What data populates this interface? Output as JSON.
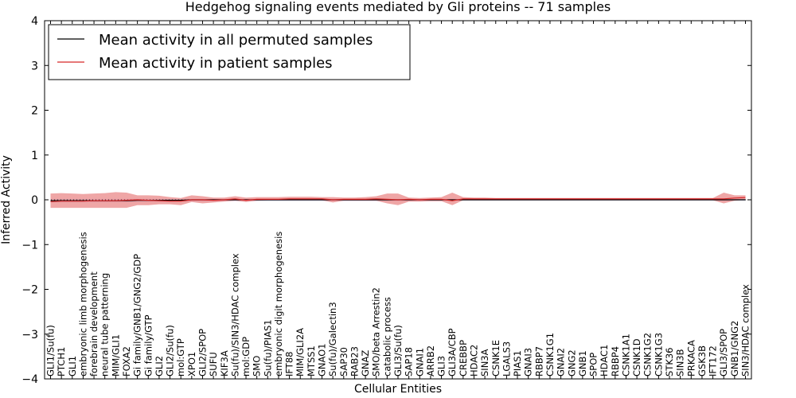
{
  "chart_data": {
    "type": "line",
    "title": "Hedgehog signaling events mediated by Gli proteins -- 71 samples",
    "xlabel": "Cellular Entities",
    "ylabel": "Inferred Activity",
    "ylim": [
      -4,
      4
    ],
    "yticks": [
      "−4",
      "−3",
      "−2",
      "−1",
      "0",
      "1",
      "2",
      "3",
      "4"
    ],
    "ytick_values": [
      -4,
      -3,
      -2,
      -1,
      0,
      1,
      2,
      3,
      4
    ],
    "legend_position": "upper-left",
    "categories": [
      "GLI1/Su(fu)",
      "PTCH1",
      "GLI1",
      "embryonic limb morphogenesis",
      "forebrain development",
      "neural tube patterning",
      "MIM/GLI1",
      "FOXA2",
      "Gi family/GNB1/GNG2/GDP",
      "Gi family/GTP",
      "GLI2",
      "GLI2/Su(fu)",
      "mol:GTP",
      "XPO1",
      "GLI2/SPOP",
      "SUFU",
      "KIF3A",
      "Su(fu)/SIN3/HDAC complex",
      "mol:GDP",
      "SMO",
      "Su(fu)/PIAS1",
      "embryonic digit morphogenesis",
      "IFT88",
      "MIM/GLI2A",
      "MTSS1",
      "GNAO1",
      "Su(fu)/Galectin3",
      "SAP30",
      "RAB23",
      "GNAZ",
      "SMO/beta Arrestin2",
      "catabolic process",
      "GLI3/Su(fu)",
      "SAP18",
      "GNAI1",
      "ARRB2",
      "GLI3",
      "GLI3A/CBP",
      "CREBBP",
      "HDAC2",
      "SIN3A",
      "CSNK1E",
      "LGALS3",
      "PIAS1",
      "GNAI3",
      "RBBP7",
      "CSNK1G1",
      "GNAI2",
      "GNG2",
      "GNB1",
      "SPOP",
      "HDAC1",
      "RBBP4",
      "CSNK1A1",
      "CSNK1D",
      "CSNK1G2",
      "CSNK1G3",
      "STK36",
      "SIN3B",
      "PRKACA",
      "GSK3B",
      "IFT172",
      "GLI3/SPOP",
      "GNB1/GNG2",
      "SIN3/HDAC complex"
    ],
    "series": [
      {
        "name": "Mean activity in all permuted samples",
        "color": "#000000",
        "values": [
          -0.02,
          -0.02,
          -0.02,
          -0.02,
          -0.02,
          -0.02,
          -0.02,
          -0.02,
          -0.01,
          -0.01,
          -0.01,
          -0.01,
          -0.01,
          0.0,
          0.0,
          0.0,
          0.0,
          0.0,
          0.0,
          0.0,
          0.0,
          0.0,
          0.0,
          0.0,
          0.0,
          0.0,
          0.0,
          0.0,
          0.0,
          0.0,
          0.0,
          0.0,
          0.0,
          0.0,
          0.0,
          0.0,
          0.0,
          0.0,
          0.0,
          0.0,
          0.0,
          0.0,
          0.0,
          0.0,
          0.0,
          0.0,
          0.0,
          0.0,
          0.0,
          0.0,
          0.0,
          0.0,
          0.0,
          0.0,
          0.0,
          0.0,
          0.0,
          0.0,
          0.0,
          0.0,
          0.0,
          0.0,
          0.0,
          0.0,
          0.0
        ],
        "band_low": [
          -0.06,
          -0.06,
          -0.06,
          -0.06,
          -0.06,
          -0.06,
          -0.06,
          -0.06,
          -0.05,
          -0.05,
          -0.05,
          -0.05,
          -0.04,
          -0.04,
          -0.04,
          -0.04,
          -0.03,
          -0.03,
          -0.03,
          -0.03,
          -0.03,
          -0.03,
          -0.03,
          -0.03,
          -0.03,
          -0.03,
          -0.03,
          -0.03,
          -0.03,
          -0.03,
          -0.03,
          -0.03,
          -0.03,
          -0.03,
          -0.03,
          -0.03,
          -0.03,
          -0.02,
          -0.02,
          -0.02,
          -0.02,
          -0.02,
          -0.02,
          -0.02,
          -0.02,
          -0.02,
          -0.02,
          -0.02,
          -0.02,
          -0.02,
          -0.02,
          -0.02,
          -0.02,
          -0.02,
          -0.02,
          -0.02,
          -0.02,
          -0.02,
          -0.02,
          -0.02,
          -0.02,
          -0.02,
          -0.03,
          -0.02,
          -0.02
        ],
        "band_high": [
          0.02,
          0.02,
          0.02,
          0.02,
          0.02,
          0.02,
          0.02,
          0.02,
          0.02,
          0.02,
          0.02,
          0.02,
          0.02,
          0.02,
          0.02,
          0.02,
          0.02,
          0.02,
          0.02,
          0.02,
          0.02,
          0.02,
          0.02,
          0.02,
          0.02,
          0.02,
          0.02,
          0.02,
          0.02,
          0.02,
          0.02,
          0.02,
          0.02,
          0.02,
          0.02,
          0.02,
          0.02,
          0.02,
          0.02,
          0.02,
          0.02,
          0.02,
          0.02,
          0.02,
          0.02,
          0.02,
          0.02,
          0.02,
          0.02,
          0.02,
          0.02,
          0.02,
          0.02,
          0.02,
          0.02,
          0.02,
          0.02,
          0.02,
          0.02,
          0.02,
          0.02,
          0.02,
          0.02,
          0.02,
          0.02
        ],
        "band_color": "#b8b8e8"
      },
      {
        "name": "Mean activity in patient samples",
        "color": "#d62728",
        "values": [
          -0.04,
          -0.03,
          -0.03,
          -0.03,
          -0.02,
          -0.02,
          -0.02,
          -0.01,
          0.0,
          -0.01,
          -0.02,
          -0.03,
          -0.03,
          0.0,
          0.0,
          -0.01,
          0.0,
          0.02,
          -0.01,
          0.01,
          0.01,
          0.01,
          0.02,
          0.02,
          0.02,
          0.02,
          0.0,
          0.01,
          0.01,
          0.01,
          0.02,
          0.01,
          0.0,
          0.01,
          0.0,
          0.01,
          0.01,
          -0.02,
          0.02,
          0.02,
          0.02,
          0.02,
          0.02,
          0.02,
          0.02,
          0.02,
          0.02,
          0.02,
          0.02,
          0.02,
          0.02,
          0.02,
          0.02,
          0.02,
          0.02,
          0.02,
          0.02,
          0.02,
          0.02,
          0.02,
          0.02,
          0.02,
          0.02,
          0.04,
          0.05
        ],
        "band_low": [
          -0.18,
          -0.18,
          -0.18,
          -0.18,
          -0.18,
          -0.18,
          -0.18,
          -0.18,
          -0.12,
          -0.12,
          -0.1,
          -0.1,
          -0.12,
          -0.05,
          -0.08,
          -0.06,
          -0.04,
          -0.02,
          -0.05,
          -0.02,
          -0.01,
          -0.01,
          -0.01,
          -0.01,
          -0.01,
          -0.01,
          -0.06,
          -0.02,
          -0.02,
          -0.02,
          -0.02,
          -0.08,
          -0.12,
          -0.04,
          -0.04,
          -0.03,
          -0.03,
          -0.12,
          -0.01,
          -0.01,
          -0.01,
          -0.01,
          -0.01,
          -0.01,
          -0.01,
          -0.01,
          -0.01,
          -0.01,
          -0.01,
          -0.01,
          -0.01,
          -0.01,
          -0.01,
          -0.01,
          -0.01,
          -0.01,
          -0.01,
          -0.01,
          -0.01,
          -0.01,
          -0.01,
          -0.01,
          -0.08,
          -0.02,
          0.0
        ],
        "band_high": [
          0.14,
          0.15,
          0.14,
          0.13,
          0.14,
          0.15,
          0.17,
          0.16,
          0.1,
          0.1,
          0.09,
          0.06,
          0.04,
          0.1,
          0.08,
          0.05,
          0.05,
          0.08,
          0.05,
          0.06,
          0.06,
          0.06,
          0.07,
          0.07,
          0.07,
          0.06,
          0.06,
          0.05,
          0.05,
          0.06,
          0.08,
          0.14,
          0.14,
          0.05,
          0.04,
          0.05,
          0.06,
          0.16,
          0.06,
          0.05,
          0.05,
          0.04,
          0.04,
          0.04,
          0.04,
          0.04,
          0.04,
          0.04,
          0.04,
          0.04,
          0.04,
          0.04,
          0.04,
          0.04,
          0.04,
          0.04,
          0.04,
          0.04,
          0.04,
          0.04,
          0.04,
          0.04,
          0.16,
          0.1,
          0.1
        ],
        "band_color": "#e88080"
      }
    ]
  }
}
